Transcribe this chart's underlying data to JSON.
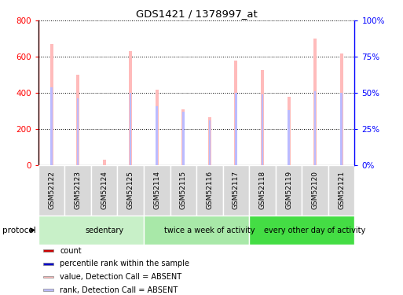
{
  "title": "GDS1421 / 1378997_at",
  "samples": [
    "GSM52122",
    "GSM52123",
    "GSM52124",
    "GSM52125",
    "GSM52114",
    "GSM52115",
    "GSM52116",
    "GSM52117",
    "GSM52118",
    "GSM52119",
    "GSM52120",
    "GSM52121"
  ],
  "absent_values": [
    670,
    500,
    30,
    630,
    420,
    310,
    265,
    580,
    525,
    380,
    700,
    620
  ],
  "absent_ranks": [
    54,
    46,
    0,
    50,
    41,
    37,
    31,
    50,
    49,
    38,
    51,
    50
  ],
  "groups": [
    {
      "label": "sedentary",
      "start": 0,
      "end": 4,
      "color": "#c8f0c8"
    },
    {
      "label": "twice a week of activity",
      "start": 4,
      "end": 8,
      "color": "#a8e8a8"
    },
    {
      "label": "every other day of activity",
      "start": 8,
      "end": 12,
      "color": "#44dd44"
    }
  ],
  "ylim_left": [
    0,
    800
  ],
  "ylim_right": [
    0,
    100
  ],
  "yticks_left": [
    0,
    200,
    400,
    600,
    800
  ],
  "yticks_right": [
    0,
    25,
    50,
    75,
    100
  ],
  "ytick_labels_right": [
    "0%",
    "25%",
    "50%",
    "75%",
    "100%"
  ],
  "absent_bar_color": "#ffbbbb",
  "absent_rank_color": "#bbbbff",
  "count_color": "#cc0000",
  "rank_color": "#0000cc",
  "legend_items": [
    {
      "label": "count",
      "color": "#cc0000"
    },
    {
      "label": "percentile rank within the sample",
      "color": "#0000cc"
    },
    {
      "label": "value, Detection Call = ABSENT",
      "color": "#ffbbbb"
    },
    {
      "label": "rank, Detection Call = ABSENT",
      "color": "#bbbbff"
    }
  ],
  "protocol_label": "protocol"
}
